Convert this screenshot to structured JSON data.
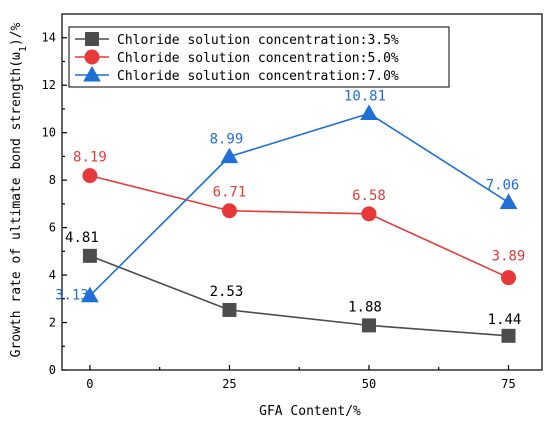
{
  "chart_data": {
    "type": "line",
    "x": [
      0,
      25,
      50,
      75
    ],
    "xlabel": "GFA Content/%",
    "ylabel": "Growth rate of ultimate bond strength(ω",
    "ylabel_subscript": "1",
    "ylabel_suffix": ")/%",
    "xlim": [
      -5,
      81
    ],
    "ylim": [
      0,
      15
    ],
    "xticks": [
      0,
      25,
      50,
      75
    ],
    "xtick_labels": [
      "0",
      "25",
      "50",
      "75"
    ],
    "yticks": [
      0,
      2,
      4,
      6,
      8,
      10,
      12,
      14
    ],
    "ytick_labels": [
      "0",
      "2",
      "4",
      "6",
      "8",
      "10",
      "12",
      "14"
    ],
    "legend_position": "top-left",
    "grid": false,
    "series": [
      {
        "name": "Chloride solution concentration:3.5%",
        "color": "#4d4d4d",
        "label_color": "#000000",
        "marker": "square",
        "values": [
          4.81,
          2.53,
          1.88,
          1.44
        ],
        "labels": [
          "4.81",
          "2.53",
          "1.88",
          "1.44"
        ]
      },
      {
        "name": "Chloride solution concentration:5.0%",
        "color": "#e8393a",
        "label_color": "#e8393a",
        "marker": "circle",
        "values": [
          8.19,
          6.71,
          6.58,
          3.89
        ],
        "labels": [
          "8.19",
          "6.71",
          "6.58",
          "3.89"
        ]
      },
      {
        "name": "Chloride solution concentration:7.0%",
        "color": "#1f6fd6",
        "label_color": "#1f6fd6",
        "marker": "triangle",
        "values": [
          3.13,
          8.99,
          10.81,
          7.06
        ],
        "labels": [
          "3.13",
          "8.99",
          "10.81",
          "7.06"
        ]
      }
    ]
  }
}
